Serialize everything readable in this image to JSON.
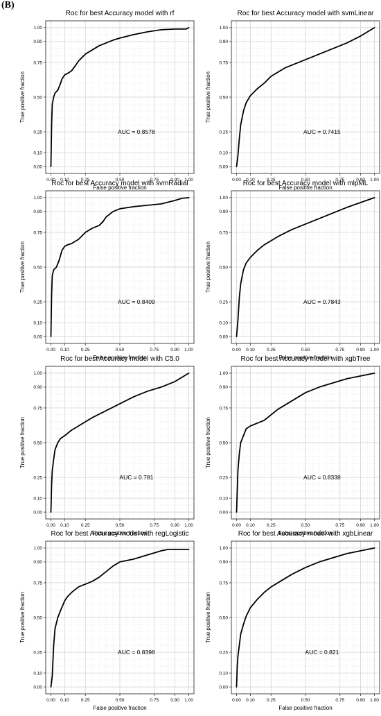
{
  "figure": {
    "panel_label": "(B)"
  },
  "chart_data": [
    {
      "type": "line",
      "title": "Roc for best Accuracy model with rf",
      "xlabel": "False positive fraction",
      "ylabel": "True positive fraction",
      "xlim": [
        0,
        1
      ],
      "ylim": [
        0,
        1
      ],
      "x_ticks": [
        "0.00",
        "0.10",
        "0.25",
        "0.50",
        "0.75",
        "0.90",
        "1.00"
      ],
      "y_ticks": [
        "0.00",
        "0.10",
        "0.25",
        "0.50",
        "0.75",
        "0.90",
        "1.00"
      ],
      "annotation": "AUC = 0.8578",
      "grid": true,
      "series": [
        {
          "x": [
            0,
            0.005,
            0.01,
            0.02,
            0.03,
            0.05,
            0.07,
            0.08,
            0.1,
            0.12,
            0.15,
            0.18,
            0.2,
            0.25,
            0.3,
            0.35,
            0.4,
            0.45,
            0.5,
            0.6,
            0.7,
            0.8,
            0.9,
            0.98,
            1.0
          ],
          "y": [
            0,
            0.3,
            0.45,
            0.5,
            0.53,
            0.55,
            0.6,
            0.63,
            0.66,
            0.67,
            0.69,
            0.73,
            0.76,
            0.81,
            0.84,
            0.87,
            0.89,
            0.91,
            0.925,
            0.95,
            0.97,
            0.985,
            0.99,
            0.99,
            1.0
          ]
        }
      ]
    },
    {
      "type": "line",
      "title": "Roc for best Accuracy model with svmLinear",
      "xlabel": "False positive fraction",
      "ylabel": "True positive fraction",
      "xlim": [
        0,
        1
      ],
      "ylim": [
        0,
        1
      ],
      "x_ticks": [
        "0.00",
        "0.10",
        "0.25",
        "0.50",
        "0.75",
        "0.90",
        "1.00"
      ],
      "y_ticks": [
        "0.00",
        "0.10",
        "0.25",
        "0.50",
        "0.75",
        "0.90",
        "1.00"
      ],
      "annotation": "AUC = 0.7415",
      "grid": true,
      "series": [
        {
          "x": [
            0,
            0.01,
            0.02,
            0.03,
            0.05,
            0.07,
            0.1,
            0.15,
            0.2,
            0.25,
            0.3,
            0.35,
            0.4,
            0.5,
            0.6,
            0.7,
            0.8,
            0.9,
            1.0
          ],
          "y": [
            0,
            0.08,
            0.2,
            0.3,
            0.4,
            0.46,
            0.51,
            0.56,
            0.6,
            0.65,
            0.68,
            0.71,
            0.73,
            0.77,
            0.81,
            0.85,
            0.89,
            0.94,
            1.0
          ]
        }
      ]
    },
    {
      "type": "line",
      "title": "Roc for best Accuracy model with svmRadial",
      "xlabel": "False positive fraction",
      "ylabel": "True positive fraction",
      "xlim": [
        0,
        1
      ],
      "ylim": [
        0,
        1
      ],
      "x_ticks": [
        "0.00",
        "0.10",
        "0.25",
        "0.50",
        "0.75",
        "0.90",
        "1.00"
      ],
      "y_ticks": [
        "0.00",
        "0.10",
        "0.25",
        "0.50",
        "0.75",
        "0.90",
        "1.00"
      ],
      "annotation": "AUC = 0.8409",
      "grid": true,
      "series": [
        {
          "x": [
            0,
            0.005,
            0.01,
            0.02,
            0.04,
            0.06,
            0.08,
            0.1,
            0.12,
            0.15,
            0.2,
            0.25,
            0.3,
            0.35,
            0.38,
            0.4,
            0.45,
            0.5,
            0.6,
            0.7,
            0.8,
            0.9,
            0.95,
            1.0
          ],
          "y": [
            0,
            0.3,
            0.44,
            0.48,
            0.5,
            0.55,
            0.62,
            0.65,
            0.66,
            0.67,
            0.7,
            0.75,
            0.78,
            0.8,
            0.83,
            0.86,
            0.9,
            0.92,
            0.935,
            0.945,
            0.955,
            0.98,
            0.995,
            1.0
          ]
        }
      ]
    },
    {
      "type": "line",
      "title": "Roc for best Accuracy model with mlpML",
      "xlabel": "False positive fraction",
      "ylabel": "True positive fraction",
      "xlim": [
        0,
        1
      ],
      "ylim": [
        0,
        1
      ],
      "x_ticks": [
        "0.00",
        "0.10",
        "0.25",
        "0.50",
        "0.75",
        "0.90",
        "1.00"
      ],
      "y_ticks": [
        "0.00",
        "0.10",
        "0.25",
        "0.50",
        "0.75",
        "0.90",
        "1.00"
      ],
      "annotation": "AUC = 0.7843",
      "grid": true,
      "series": [
        {
          "x": [
            0,
            0.01,
            0.02,
            0.03,
            0.05,
            0.07,
            0.1,
            0.15,
            0.2,
            0.3,
            0.4,
            0.5,
            0.6,
            0.7,
            0.8,
            0.9,
            1.0
          ],
          "y": [
            0,
            0.12,
            0.28,
            0.38,
            0.48,
            0.53,
            0.57,
            0.62,
            0.66,
            0.72,
            0.77,
            0.81,
            0.85,
            0.89,
            0.93,
            0.965,
            1.0
          ]
        }
      ]
    },
    {
      "type": "line",
      "title": "Roc for best Accuracy model with C5.0",
      "xlabel": "False positive fraction",
      "ylabel": "True positive fraction",
      "xlim": [
        0,
        1
      ],
      "ylim": [
        0,
        1
      ],
      "x_ticks": [
        "0.00",
        "0.10",
        "0.25",
        "0.50",
        "0.75",
        "0.90",
        "1.00"
      ],
      "y_ticks": [
        "0.00",
        "0.10",
        "0.25",
        "0.50",
        "0.75",
        "0.90",
        "1.00"
      ],
      "annotation": "AUC = 0.781",
      "grid": true,
      "series": [
        {
          "x": [
            0,
            0.005,
            0.01,
            0.02,
            0.03,
            0.05,
            0.07,
            0.1,
            0.15,
            0.2,
            0.3,
            0.4,
            0.5,
            0.6,
            0.7,
            0.8,
            0.9,
            1.0
          ],
          "y": [
            0,
            0.2,
            0.3,
            0.38,
            0.45,
            0.5,
            0.53,
            0.55,
            0.59,
            0.62,
            0.68,
            0.73,
            0.78,
            0.83,
            0.87,
            0.9,
            0.94,
            1.0
          ]
        }
      ]
    },
    {
      "type": "line",
      "title": "Roc for best Accuracy model with xgbTree",
      "xlabel": "False positive fraction",
      "ylabel": "True positive fraction",
      "xlim": [
        0,
        1
      ],
      "ylim": [
        0,
        1
      ],
      "x_ticks": [
        "0.00",
        "0.10",
        "0.25",
        "0.50",
        "0.75",
        "0.90",
        "1.00"
      ],
      "y_ticks": [
        "0.00",
        "0.10",
        "0.25",
        "0.50",
        "0.75",
        "0.90",
        "1.00"
      ],
      "annotation": "AUC = 0.8338",
      "grid": true,
      "series": [
        {
          "x": [
            0,
            0.005,
            0.01,
            0.02,
            0.03,
            0.05,
            0.07,
            0.1,
            0.15,
            0.2,
            0.25,
            0.3,
            0.4,
            0.5,
            0.6,
            0.7,
            0.8,
            0.9,
            1.0
          ],
          "y": [
            0,
            0.15,
            0.3,
            0.42,
            0.5,
            0.55,
            0.6,
            0.62,
            0.64,
            0.66,
            0.7,
            0.74,
            0.8,
            0.86,
            0.9,
            0.93,
            0.96,
            0.98,
            1.0
          ]
        }
      ]
    },
    {
      "type": "line",
      "title": "Roc for best Accuracy model with regLogistic",
      "xlabel": "False positive fraction",
      "ylabel": "True positive fraction",
      "xlim": [
        0,
        1
      ],
      "ylim": [
        0,
        1
      ],
      "x_ticks": [
        "0.00",
        "0.10",
        "0.25",
        "0.50",
        "0.75",
        "0.90",
        "1.00"
      ],
      "y_ticks": [
        "0.00",
        "0.10",
        "0.25",
        "0.50",
        "0.75",
        "0.90",
        "1.00"
      ],
      "annotation": "AUC = 0.8398",
      "grid": true,
      "series": [
        {
          "x": [
            0,
            0.01,
            0.02,
            0.03,
            0.05,
            0.07,
            0.1,
            0.12,
            0.15,
            0.2,
            0.25,
            0.3,
            0.35,
            0.4,
            0.45,
            0.5,
            0.6,
            0.7,
            0.8,
            0.85,
            0.9,
            1.0
          ],
          "y": [
            0,
            0.08,
            0.3,
            0.42,
            0.5,
            0.55,
            0.62,
            0.65,
            0.68,
            0.72,
            0.74,
            0.76,
            0.79,
            0.83,
            0.87,
            0.9,
            0.92,
            0.95,
            0.98,
            0.99,
            0.99,
            0.99
          ]
        }
      ]
    },
    {
      "type": "line",
      "title": "Roc for best Accuracy model with xgbLinear",
      "xlabel": "False positive fraction",
      "ylabel": "True positive fraction",
      "xlim": [
        0,
        1
      ],
      "ylim": [
        0,
        1
      ],
      "x_ticks": [
        "0.00",
        "0.10",
        "0.25",
        "0.50",
        "0.75",
        "0.90",
        "1.00"
      ],
      "y_ticks": [
        "0.00",
        "0.10",
        "0.25",
        "0.50",
        "0.75",
        "0.90",
        "1.00"
      ],
      "annotation": "AUC = 0.821",
      "grid": true,
      "series": [
        {
          "x": [
            0,
            0.005,
            0.01,
            0.02,
            0.03,
            0.05,
            0.07,
            0.1,
            0.15,
            0.2,
            0.25,
            0.3,
            0.4,
            0.5,
            0.6,
            0.7,
            0.8,
            0.9,
            1.0
          ],
          "y": [
            0,
            0.15,
            0.22,
            0.3,
            0.38,
            0.45,
            0.51,
            0.57,
            0.63,
            0.68,
            0.72,
            0.75,
            0.81,
            0.86,
            0.9,
            0.93,
            0.96,
            0.98,
            1.0
          ]
        }
      ]
    }
  ]
}
